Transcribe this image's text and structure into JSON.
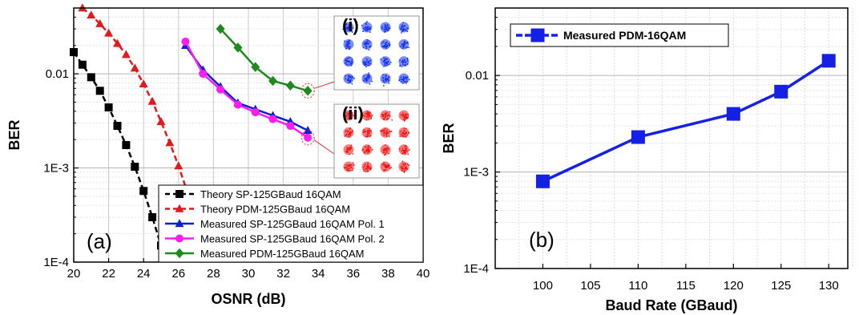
{
  "chart_data": [
    {
      "type": "line",
      "panel_label": "(a)",
      "xlabel": "OSNR (dB)",
      "ylabel": "BER",
      "xlim": [
        20,
        40
      ],
      "ylim_log": [
        0.0001,
        0.05
      ],
      "log_y": true,
      "grid": true,
      "x_ticks": [
        "20",
        "22",
        "24",
        "26",
        "28",
        "30",
        "32",
        "34",
        "36",
        "38",
        "40"
      ],
      "y_ticks": [
        {
          "label": "0.01",
          "value": 0.01
        },
        {
          "label": "1E-3",
          "value": 0.001
        },
        {
          "label": "1E-4",
          "value": 0.0001
        }
      ],
      "legend_position": "bottom-right",
      "series": [
        {
          "name": "Theory SP-125GBaud 16QAM",
          "color": "#000000",
          "marker": "square",
          "dashed": true,
          "x": [
            20.0,
            20.5,
            21.0,
            21.5,
            22.0,
            22.5,
            23.0,
            23.5,
            24.0,
            24.5,
            25.0
          ],
          "y": [
            0.017,
            0.0125,
            0.0092,
            0.0066,
            0.0044,
            0.0028,
            0.00175,
            0.00103,
            0.00057,
            0.0003,
            0.00015
          ]
        },
        {
          "name": "Theory PDM-125GBaud 16QAM",
          "color": "#e31a1c",
          "marker": "triangle",
          "dashed": true,
          "x": [
            20.5,
            21.0,
            21.5,
            22.0,
            22.5,
            23.0,
            23.5,
            24.0,
            24.5,
            25.0,
            25.5,
            26.0,
            26.5,
            27.0
          ],
          "y": [
            0.05,
            0.042,
            0.034,
            0.027,
            0.021,
            0.016,
            0.0115,
            0.0078,
            0.0051,
            0.0031,
            0.00185,
            0.00105,
            0.00056,
            0.00029
          ]
        },
        {
          "name": "Measured SP-125GBaud 16QAM Pol. 1",
          "color": "#0d1fd1",
          "marker": "triangle",
          "dashed": false,
          "x": [
            26.4,
            27.4,
            28.4,
            29.4,
            30.4,
            31.4,
            32.4,
            33.4
          ],
          "y": [
            0.02,
            0.011,
            0.0073,
            0.0049,
            0.0042,
            0.0036,
            0.0031,
            0.0025
          ]
        },
        {
          "name": "Measured SP-125GBaud 16QAM Pol. 2",
          "color": "#ff1cf0",
          "marker": "circle",
          "dashed": false,
          "x": [
            26.4,
            27.4,
            28.4,
            29.4,
            30.4,
            31.4,
            32.4,
            33.4
          ],
          "y": [
            0.022,
            0.01,
            0.0068,
            0.0047,
            0.0039,
            0.0033,
            0.0028,
            0.0021
          ]
        },
        {
          "name": "Measured PDM-125GBaud 16QAM",
          "color": "#1d8a1d",
          "marker": "diamond",
          "dashed": false,
          "x": [
            28.4,
            29.4,
            30.4,
            31.4,
            32.4,
            33.4
          ],
          "y": [
            0.03,
            0.019,
            0.0118,
            0.0084,
            0.0075,
            0.0066
          ]
        }
      ],
      "insets": [
        {
          "label": "(i)",
          "color": "#1030f0"
        },
        {
          "label": "(ii)",
          "color": "#f01010"
        }
      ]
    },
    {
      "type": "line",
      "panel_label": "(b)",
      "xlabel": "Baud Rate (GBaud)",
      "ylabel": "BER",
      "xlim": [
        95,
        132
      ],
      "ylim_log": [
        0.0001,
        0.05
      ],
      "log_y": true,
      "grid": true,
      "x_ticks": [
        "100",
        "105",
        "110",
        "115",
        "120",
        "125",
        "130"
      ],
      "y_ticks": [
        {
          "label": "0.01",
          "value": 0.01
        },
        {
          "label": "1E-3",
          "value": 0.001
        },
        {
          "label": "1E-4",
          "value": 0.0001
        }
      ],
      "legend_position": "top-left",
      "series": [
        {
          "name": "Measured PDM-16QAM",
          "color": "#1520e6",
          "marker": "square",
          "dashed": false,
          "x": [
            100,
            110,
            120,
            125,
            130
          ],
          "y": [
            0.0008,
            0.0023,
            0.004,
            0.0068,
            0.0142
          ]
        }
      ]
    }
  ]
}
